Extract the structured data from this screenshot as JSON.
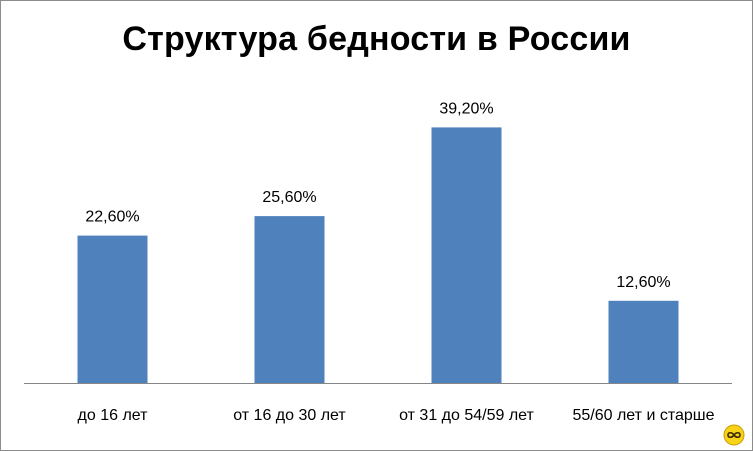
{
  "chart_data": {
    "type": "bar",
    "title": "Структура бедности в России",
    "categories": [
      "до 16 лет",
      "от 16 до 30 лет",
      "от 31 до 54/59 лет",
      "55/60 лет и старше"
    ],
    "series": [
      {
        "values": [
          22.6,
          25.6,
          39.2,
          12.6
        ],
        "labels": [
          "22,60%",
          "25,60%",
          "39,20%",
          "12,60%"
        ],
        "color": "#4f81bd"
      }
    ],
    "xlabel": "",
    "ylabel": "",
    "ylim": [
      0,
      45
    ],
    "grid": false,
    "legend": "none"
  },
  "colors": {
    "bar": "#4f81bd",
    "axis": "#868686",
    "text": "#000000"
  },
  "watermark": {
    "icon": "infinity-badge-icon",
    "color": "#f2c200"
  }
}
